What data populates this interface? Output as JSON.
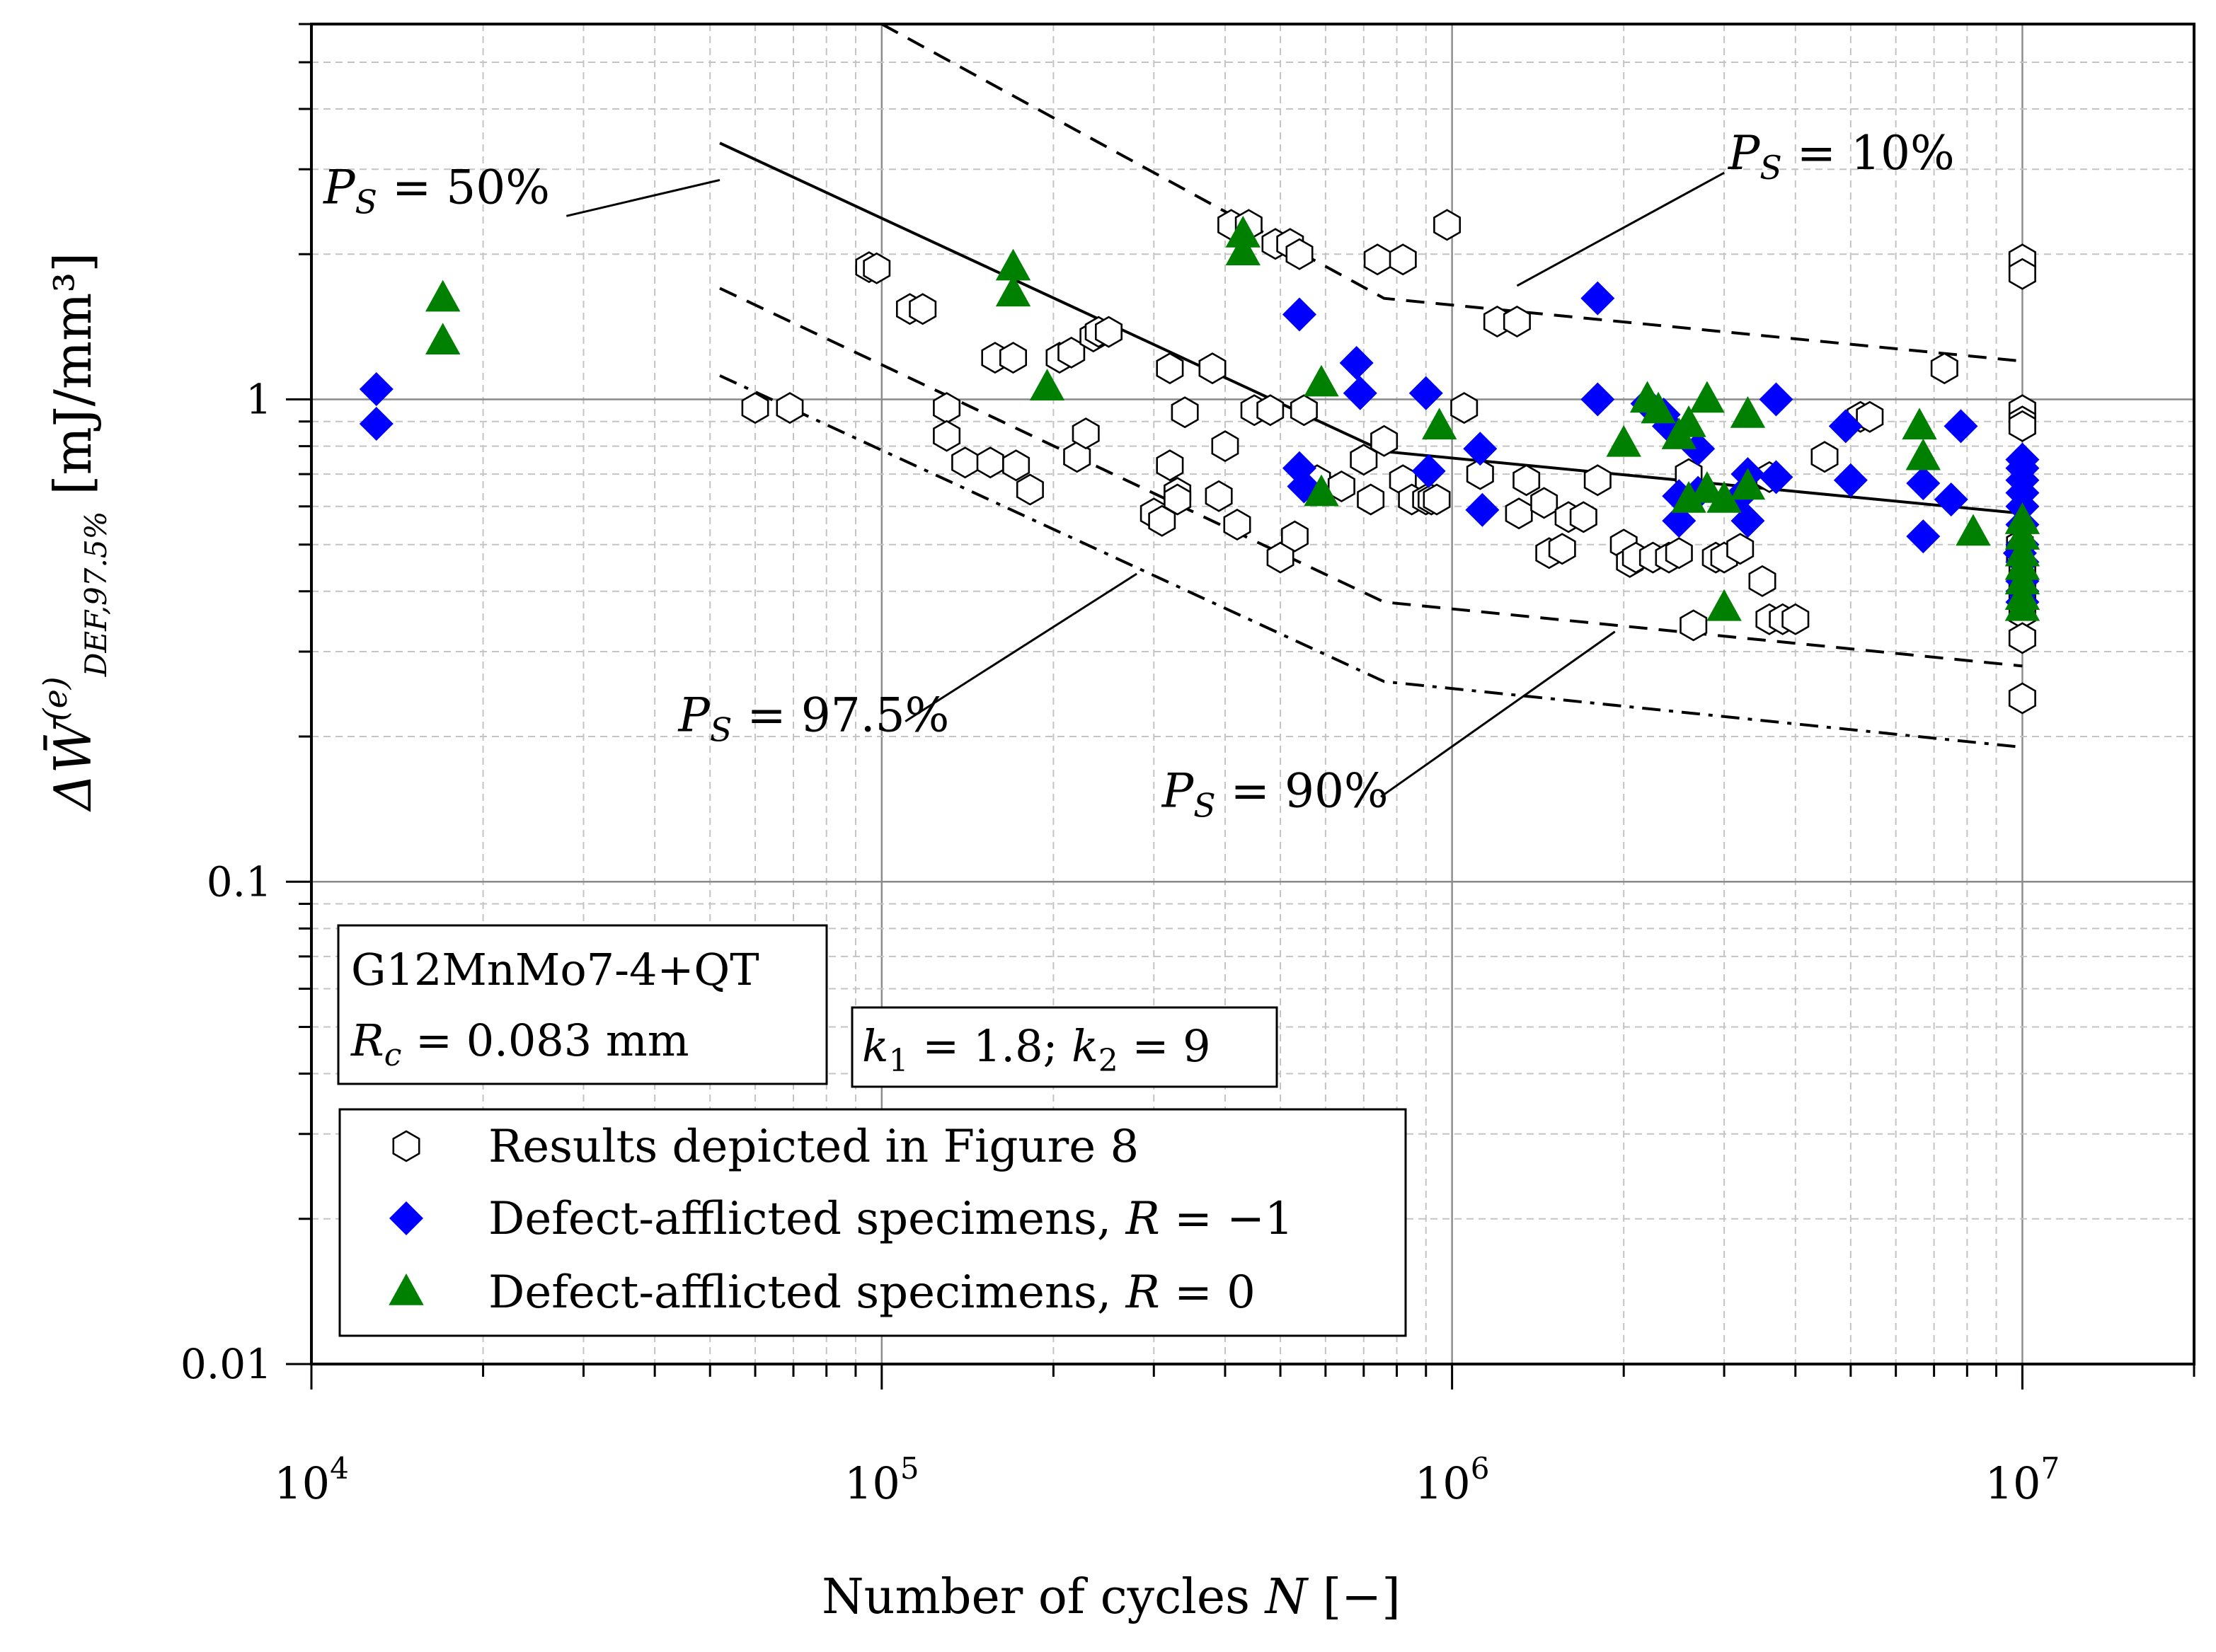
{
  "chart_data": {
    "type": "scatter",
    "title": "",
    "xlabel": "Number of cycles N [−]",
    "ylabel": {
      "symbol": "ΔW̄",
      "superscript": "(e)",
      "subscript": "DEF,97.5%",
      "unit": "[mJ/mm³]"
    },
    "x_scale": "log",
    "y_scale": "log",
    "xlim": [
      10000,
      20000000
    ],
    "ylim": [
      0.01,
      6
    ],
    "x_ticks": [
      {
        "value": 10000,
        "base": "10",
        "exp": "4"
      },
      {
        "value": 100000,
        "base": "10",
        "exp": "5"
      },
      {
        "value": 1000000,
        "base": "10",
        "exp": "6"
      },
      {
        "value": 10000000,
        "base": "10",
        "exp": "7"
      }
    ],
    "y_ticks": [
      {
        "value": 0.01,
        "label": "0.01"
      },
      {
        "value": 0.1,
        "label": "0.1"
      },
      {
        "value": 1,
        "label": "1"
      }
    ],
    "grid": true,
    "material_box": {
      "line1": "G12MnMo7-4+QT",
      "line2_symbol": "R",
      "line2_sub": "c",
      "line2_value": " = 0.083 mm"
    },
    "slope_box": {
      "k1_sym": "k",
      "k1_sub": "1",
      "k1_value": " = 1.8;",
      "k2_sym": "k",
      "k2_sub": "2",
      "k2_value": " = 9"
    },
    "legend_position": "bottom-left",
    "series": [
      {
        "name": "Results depicted in Figure 8",
        "marker": "hexagon",
        "color": "#000000",
        "fill": "#ffffff",
        "points": [
          [
            60000,
            0.96
          ],
          [
            69000,
            0.96
          ],
          [
            95000,
            1.88
          ],
          [
            98000,
            1.87
          ],
          [
            112000,
            1.54
          ],
          [
            118000,
            1.54
          ],
          [
            130000,
            0.96
          ],
          [
            130000,
            0.84
          ],
          [
            140000,
            0.74
          ],
          [
            155000,
            0.74
          ],
          [
            158000,
            1.22
          ],
          [
            170000,
            1.22
          ],
          [
            172000,
            0.73
          ],
          [
            182000,
            0.65
          ],
          [
            205000,
            1.22
          ],
          [
            215000,
            1.25
          ],
          [
            220000,
            0.76
          ],
          [
            228000,
            0.85
          ],
          [
            235000,
            1.35
          ],
          [
            240000,
            1.38
          ],
          [
            250000,
            1.38
          ],
          [
            300000,
            0.58
          ],
          [
            310000,
            0.56
          ],
          [
            320000,
            1.16
          ],
          [
            320000,
            0.73
          ],
          [
            330000,
            0.64
          ],
          [
            330000,
            0.62
          ],
          [
            340000,
            0.94
          ],
          [
            380000,
            1.16
          ],
          [
            410000,
            2.3
          ],
          [
            440000,
            2.3
          ],
          [
            390000,
            0.63
          ],
          [
            400000,
            0.8
          ],
          [
            420000,
            0.55
          ],
          [
            450000,
            0.95
          ],
          [
            480000,
            0.95
          ],
          [
            490000,
            2.1
          ],
          [
            520000,
            2.1
          ],
          [
            540000,
            2.0
          ],
          [
            500000,
            0.47
          ],
          [
            530000,
            0.52
          ],
          [
            550000,
            0.95
          ],
          [
            580000,
            0.68
          ],
          [
            640000,
            0.66
          ],
          [
            700000,
            0.75
          ],
          [
            720000,
            0.62
          ],
          [
            740000,
            1.95
          ],
          [
            760000,
            0.82
          ],
          [
            820000,
            1.95
          ],
          [
            820000,
            0.68
          ],
          [
            850000,
            0.62
          ],
          [
            900000,
            0.62
          ],
          [
            920000,
            0.62
          ],
          [
            940000,
            0.62
          ],
          [
            980000,
            2.3
          ],
          [
            1050000,
            0.96
          ],
          [
            1120000,
            0.7
          ],
          [
            1200000,
            1.45
          ],
          [
            1300000,
            1.45
          ],
          [
            1310000,
            0.58
          ],
          [
            1350000,
            0.68
          ],
          [
            1450000,
            0.61
          ],
          [
            1480000,
            0.48
          ],
          [
            1560000,
            0.49
          ],
          [
            1600000,
            0.57
          ],
          [
            1700000,
            0.57
          ],
          [
            1800000,
            0.68
          ],
          [
            2000000,
            0.5
          ],
          [
            2050000,
            0.46
          ],
          [
            2100000,
            0.47
          ],
          [
            2250000,
            0.47
          ],
          [
            2400000,
            0.47
          ],
          [
            2500000,
            0.48
          ],
          [
            2600000,
            0.7
          ],
          [
            2650000,
            0.34
          ],
          [
            2900000,
            0.47
          ],
          [
            3000000,
            0.47
          ],
          [
            3200000,
            0.49
          ],
          [
            3500000,
            0.42
          ],
          [
            3600000,
            0.35
          ],
          [
            3800000,
            0.35
          ],
          [
            4000000,
            0.35
          ],
          [
            3600000,
            0.69
          ],
          [
            4500000,
            0.76
          ],
          [
            5200000,
            0.92
          ],
          [
            5400000,
            0.92
          ],
          [
            7300000,
            1.16
          ],
          [
            9900000,
            0.5
          ],
          [
            9900000,
            0.48
          ],
          [
            10000000,
            1.95
          ],
          [
            10000000,
            1.82
          ],
          [
            10000000,
            0.95
          ],
          [
            10000000,
            0.9
          ],
          [
            10000000,
            0.88
          ],
          [
            10000000,
            0.45
          ],
          [
            10000000,
            0.42
          ],
          [
            10000000,
            0.4
          ],
          [
            10000000,
            0.36
          ],
          [
            10000000,
            0.32
          ],
          [
            10000000,
            0.24
          ]
        ]
      },
      {
        "name": "Defect-afflicted specimens, R = −1",
        "marker": "diamond",
        "color": "#0000ff",
        "points": [
          [
            13000,
            1.05
          ],
          [
            13000,
            0.89
          ],
          [
            540000,
            1.5
          ],
          [
            540000,
            0.72
          ],
          [
            550000,
            0.66
          ],
          [
            680000,
            1.19
          ],
          [
            690000,
            1.03
          ],
          [
            900000,
            1.03
          ],
          [
            910000,
            0.71
          ],
          [
            1120000,
            0.79
          ],
          [
            1130000,
            0.59
          ],
          [
            1800000,
            1.62
          ],
          [
            1800000,
            1.0
          ],
          [
            2200000,
            0.98
          ],
          [
            2350000,
            0.93
          ],
          [
            2400000,
            0.88
          ],
          [
            2500000,
            0.63
          ],
          [
            2500000,
            0.56
          ],
          [
            2700000,
            0.79
          ],
          [
            2700000,
            0.64
          ],
          [
            3200000,
            0.63
          ],
          [
            3300000,
            0.7
          ],
          [
            3300000,
            0.56
          ],
          [
            3700000,
            0.69
          ],
          [
            3700000,
            1.0
          ],
          [
            4900000,
            0.88
          ],
          [
            5000000,
            0.68
          ],
          [
            6700000,
            0.67
          ],
          [
            6700000,
            0.52
          ],
          [
            7500000,
            0.62
          ],
          [
            7800000,
            0.88
          ],
          [
            9900000,
            0.48
          ],
          [
            10000000,
            0.75
          ],
          [
            10000000,
            0.72
          ],
          [
            10000000,
            0.68
          ],
          [
            10000000,
            0.64
          ],
          [
            10000000,
            0.6
          ],
          [
            10000000,
            0.55
          ],
          [
            10000000,
            0.5
          ],
          [
            10000000,
            0.46
          ],
          [
            10000000,
            0.42
          ],
          [
            10000000,
            0.4
          ],
          [
            10000000,
            0.38
          ]
        ]
      },
      {
        "name": "Defect-afflicted specimens, R = 0",
        "marker": "triangle",
        "color": "#008000",
        "points": [
          [
            17000,
            1.62
          ],
          [
            17000,
            1.32
          ],
          [
            170000,
            1.88
          ],
          [
            170000,
            1.66
          ],
          [
            195000,
            1.06
          ],
          [
            430000,
            2.2
          ],
          [
            430000,
            2.02
          ],
          [
            590000,
            1.08
          ],
          [
            590000,
            0.64
          ],
          [
            950000,
            0.88
          ],
          [
            2000000,
            0.81
          ],
          [
            2200000,
            1.0
          ],
          [
            2300000,
            0.95
          ],
          [
            2500000,
            0.84
          ],
          [
            2600000,
            0.89
          ],
          [
            2600000,
            0.62
          ],
          [
            2800000,
            1.0
          ],
          [
            2800000,
            0.65
          ],
          [
            3000000,
            0.62
          ],
          [
            3000000,
            0.37
          ],
          [
            3300000,
            0.93
          ],
          [
            3300000,
            0.66
          ],
          [
            6600000,
            0.88
          ],
          [
            6700000,
            0.76
          ],
          [
            8200000,
            0.53
          ],
          [
            10000000,
            0.56
          ],
          [
            10000000,
            0.52
          ],
          [
            10000000,
            0.48
          ],
          [
            10000000,
            0.45
          ],
          [
            10000000,
            0.42
          ],
          [
            10000000,
            0.39
          ],
          [
            10000000,
            0.37
          ]
        ]
      }
    ],
    "curves": [
      {
        "name": "P_S = 10%",
        "style": "dashed",
        "points": [
          [
            100000,
            6.0
          ],
          [
            760000,
            1.62
          ],
          [
            10000000,
            1.2
          ]
        ]
      },
      {
        "name": "P_S = 50%",
        "style": "solid",
        "points": [
          [
            52000,
            3.4
          ],
          [
            760000,
            0.78
          ],
          [
            10000000,
            0.58
          ]
        ]
      },
      {
        "name": "P_S = 90%",
        "style": "dashed",
        "points": [
          [
            52000,
            1.7
          ],
          [
            760000,
            0.38
          ],
          [
            10000000,
            0.28
          ]
        ]
      },
      {
        "name": "P_S = 97.5%",
        "style": "dashdot",
        "points": [
          [
            52000,
            1.12
          ],
          [
            760000,
            0.26
          ],
          [
            10000000,
            0.19
          ]
        ]
      }
    ],
    "annotations": [
      {
        "id": "ps50",
        "sym": "P",
        "sub": "S",
        "value": " = 50%",
        "label_at": [
          10500,
          2.55
        ],
        "line_from": [
          28000,
          2.4
        ],
        "line_to": [
          52000,
          2.85
        ]
      },
      {
        "id": "ps10",
        "sym": "P",
        "sub": "S",
        "value": " = 10%",
        "label_at": [
          3050000,
          3.0
        ],
        "line_from": [
          3000000,
          2.95
        ],
        "line_to": [
          1300000,
          1.72
        ]
      },
      {
        "id": "ps975",
        "sym": "P",
        "sub": "S",
        "value": " = 97.5%",
        "label_at": [
          44000,
          0.205
        ],
        "line_from": [
          110000,
          0.215
        ],
        "line_to": [
          280000,
          0.435
        ]
      },
      {
        "id": "ps90",
        "sym": "P",
        "sub": "S",
        "value": " = 90%",
        "label_at": [
          310000,
          0.143
        ],
        "line_from": [
          750000,
          0.15
        ],
        "line_to": [
          1930000,
          0.33
        ]
      }
    ]
  }
}
